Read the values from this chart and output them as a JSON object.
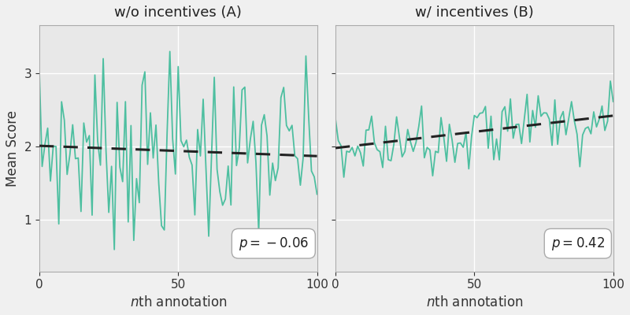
{
  "title_A": "w/o incentives (A)",
  "title_B": "w/ incentives (B)",
  "ylabel": "Mean Score",
  "annotation_A": "p = −0.06",
  "annotation_B": "p = 0.42",
  "line_color": "#4dbfa0",
  "trend_color": "#222222",
  "background_color": "#f0f0f0",
  "plot_bg_color": "#e8e8e8",
  "grid_color": "#ffffff",
  "xlim": [
    0,
    100
  ],
  "ylim": [
    0.3,
    3.65
  ],
  "yticks": [
    1,
    2,
    3
  ],
  "xticks": [
    0,
    50,
    100
  ],
  "trend_A_start": 2.01,
  "trend_A_end": 1.87,
  "trend_B_start": 1.98,
  "trend_B_end": 2.42,
  "noise_A_std": 0.6,
  "noise_B_std": 0.22,
  "seed_A": 7,
  "seed_B": 3,
  "n_points": 101,
  "figsize": [
    8.0,
    4.0
  ],
  "dpi": 100
}
